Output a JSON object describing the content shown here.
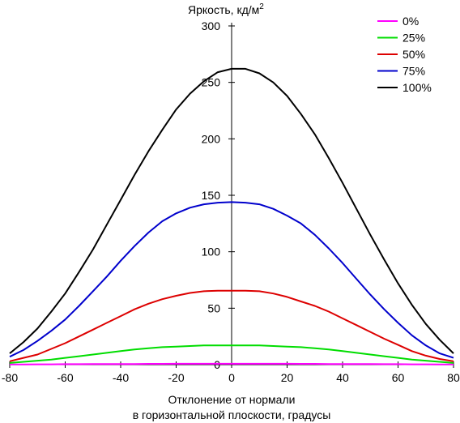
{
  "chart_data": {
    "type": "line",
    "ylabel": "Яркость, кд/м",
    "ylabel_sup": "2",
    "xlabel_line1": "Отклонение от нормали",
    "xlabel_line2": "в горизонтальной плоскости, градусы",
    "xlim": [
      -80,
      80
    ],
    "ylim": [
      0,
      300
    ],
    "x_ticks": [
      -80,
      -60,
      -40,
      -20,
      0,
      20,
      40,
      60,
      80
    ],
    "y_ticks": [
      0,
      50,
      100,
      150,
      200,
      250,
      300
    ],
    "grid": false,
    "legend_position": "top-right",
    "x": [
      -80,
      -75,
      -70,
      -65,
      -60,
      -55,
      -50,
      -45,
      -40,
      -35,
      -30,
      -25,
      -20,
      -15,
      -10,
      -5,
      0,
      5,
      10,
      15,
      20,
      25,
      30,
      35,
      40,
      45,
      50,
      55,
      60,
      65,
      70,
      75,
      80
    ],
    "series": [
      {
        "name": "0%",
        "color": "#ff00ff",
        "values": [
          0.2,
          0.2,
          0.3,
          0.3,
          0.4,
          0.4,
          0.5,
          0.5,
          0.6,
          0.6,
          0.7,
          0.7,
          0.8,
          0.8,
          0.8,
          0.8,
          0.8,
          0.8,
          0.8,
          0.8,
          0.8,
          0.7,
          0.7,
          0.6,
          0.6,
          0.5,
          0.5,
          0.4,
          0.4,
          0.3,
          0.3,
          0.2,
          0.2
        ]
      },
      {
        "name": "25%",
        "color": "#00dd00",
        "values": [
          1.5,
          2.5,
          3.5,
          4.5,
          6,
          7.5,
          9,
          10.5,
          12,
          13.5,
          14.5,
          15.5,
          16,
          16.5,
          17,
          17,
          17,
          17,
          17,
          16.5,
          16,
          15.5,
          14.5,
          13.5,
          12,
          10.5,
          9,
          7.5,
          6,
          4.5,
          3.5,
          2.5,
          1.5
        ]
      },
      {
        "name": "50%",
        "color": "#dd0000",
        "values": [
          3,
          6,
          9,
          14,
          19,
          25,
          31,
          37,
          43,
          49,
          54,
          58,
          61,
          63.5,
          65,
          65.5,
          65.5,
          65.5,
          65,
          63,
          60,
          56,
          52,
          47,
          41,
          35,
          29,
          23,
          17.5,
          12,
          8,
          5,
          3
        ]
      },
      {
        "name": "75%",
        "color": "#0000cc",
        "values": [
          7,
          13,
          21,
          30,
          40,
          52,
          65,
          78,
          92,
          105,
          117,
          127,
          134,
          139,
          142,
          143.5,
          144,
          143.5,
          142,
          138,
          132,
          125,
          115,
          103,
          90,
          76,
          62,
          49,
          37,
          26,
          17,
          10,
          6
        ]
      },
      {
        "name": "100%",
        "color": "#000000",
        "values": [
          10,
          20,
          32,
          47,
          63,
          82,
          102,
          124,
          146,
          168,
          189,
          208,
          226,
          240,
          251,
          259,
          262,
          262,
          258,
          250,
          238,
          222,
          204,
          183,
          161,
          138,
          115,
          93,
          72,
          53,
          36,
          22,
          10
        ]
      }
    ]
  }
}
